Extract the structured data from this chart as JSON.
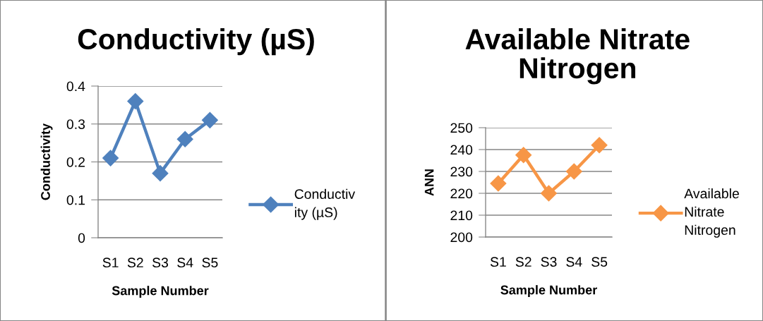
{
  "chart_data": [
    {
      "type": "line",
      "title": "Conductivity (µS)",
      "xlabel": "Sample Number",
      "ylabel": "Conductivity",
      "categories": [
        "S1",
        "S2",
        "S3",
        "S4",
        "S5"
      ],
      "series": [
        {
          "name": "Conductivity (µS)",
          "color": "#4f81bd",
          "values": [
            0.21,
            0.36,
            0.17,
            0.26,
            0.31
          ]
        }
      ],
      "ylim": [
        0,
        0.4
      ],
      "yticks": [
        0,
        0.1,
        0.2,
        0.3,
        0.4
      ],
      "grid": "y",
      "legend": "right",
      "marker": "diamond",
      "line_style": "solid"
    },
    {
      "type": "line",
      "title": "Available Nitrate Nitrogen",
      "xlabel": "Sample Number",
      "ylabel": "ANN",
      "categories": [
        "S1",
        "S2",
        "S3",
        "S4",
        "S5"
      ],
      "series": [
        {
          "name": "Available Nitrate Nitrogen",
          "color": "#f79646",
          "values": [
            224.5,
            237.5,
            220,
            230,
            242
          ]
        }
      ],
      "ylim": [
        200,
        250
      ],
      "yticks": [
        200,
        210,
        220,
        230,
        240,
        250
      ],
      "grid": "y",
      "legend": "right",
      "marker": "diamond",
      "line_style": "solid"
    }
  ]
}
